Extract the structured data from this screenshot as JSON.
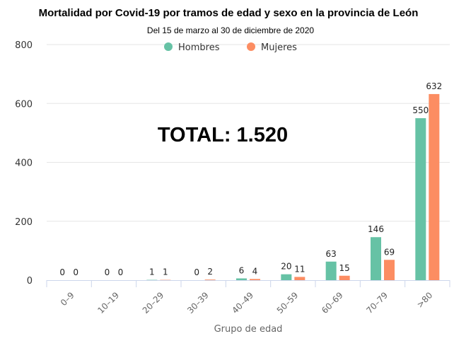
{
  "chart_data": {
    "type": "bar",
    "title": "Mortalidad por Covid-19 por tramos de edad y sexo en la provincia de León",
    "subtitle": "Del 15 de marzo al 30 de diciembre de 2020",
    "annotation": "TOTAL: 1.520",
    "xlabel": "Grupo de edad",
    "ylabel": "",
    "ylim": [
      0,
      800
    ],
    "yticks": [
      "0",
      "200",
      "400",
      "600",
      "800"
    ],
    "grid": true,
    "legend_position": "top-center",
    "categories": [
      "0-9",
      "10-19",
      "20-29",
      "30-39",
      "40-49",
      "50-59",
      "60-69",
      "70-79",
      ">80"
    ],
    "series": [
      {
        "name": "Hombres",
        "color": "#66c2a5",
        "values": [
          0,
          0,
          1,
          0,
          6,
          20,
          63,
          146,
          550
        ]
      },
      {
        "name": "Mujeres",
        "color": "#fc8d62",
        "values": [
          0,
          0,
          1,
          2,
          4,
          11,
          15,
          69,
          632
        ]
      }
    ]
  }
}
